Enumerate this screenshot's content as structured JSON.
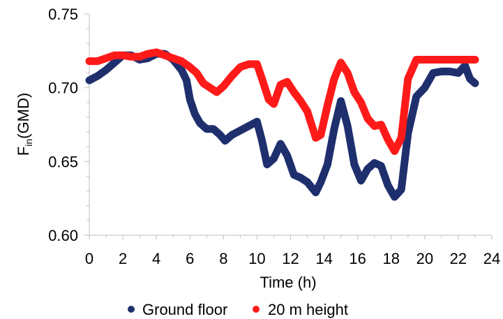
{
  "chart_data": {
    "type": "line",
    "title": "",
    "xlabel": "Time (h)",
    "ylabel_main": "F",
    "ylabel_sub": "in",
    "ylabel_tail": "(GMD)",
    "xlim": [
      0,
      24
    ],
    "ylim": [
      0.6,
      0.75
    ],
    "xticks": [
      0,
      2,
      4,
      6,
      8,
      10,
      12,
      14,
      16,
      18,
      20,
      22,
      24
    ],
    "xtick_labels": [
      "0",
      "2",
      "4",
      "6",
      "8",
      "10",
      "12",
      "14",
      "16",
      "18",
      "20",
      "22",
      "24"
    ],
    "yticks": [
      0.6,
      0.65,
      0.7,
      0.75
    ],
    "ytick_labels": [
      "0.60",
      "0.65",
      "0.70",
      "0.75"
    ],
    "grid": false,
    "legend_position": "bottom",
    "series": [
      {
        "name": "Ground floor",
        "color": "#1f2f6e",
        "points": [
          [
            0,
            0.705
          ],
          [
            0.5,
            0.708
          ],
          [
            1,
            0.712
          ],
          [
            1.5,
            0.717
          ],
          [
            2,
            0.722
          ],
          [
            2.5,
            0.722
          ],
          [
            3,
            0.719
          ],
          [
            3.5,
            0.72
          ],
          [
            4,
            0.723
          ],
          [
            4.5,
            0.723
          ],
          [
            5,
            0.719
          ],
          [
            5.5,
            0.712
          ],
          [
            5.8,
            0.705
          ],
          [
            6,
            0.692
          ],
          [
            6.3,
            0.682
          ],
          [
            6.6,
            0.676
          ],
          [
            7,
            0.672
          ],
          [
            7.4,
            0.672
          ],
          [
            7.8,
            0.668
          ],
          [
            8.1,
            0.664
          ],
          [
            8.5,
            0.668
          ],
          [
            9,
            0.671
          ],
          [
            9.5,
            0.674
          ],
          [
            10,
            0.677
          ],
          [
            10.3,
            0.664
          ],
          [
            10.6,
            0.648
          ],
          [
            11,
            0.652
          ],
          [
            11.4,
            0.662
          ],
          [
            11.8,
            0.654
          ],
          [
            12.2,
            0.641
          ],
          [
            12.6,
            0.639
          ],
          [
            13,
            0.636
          ],
          [
            13.5,
            0.629
          ],
          [
            13.8,
            0.636
          ],
          [
            14.2,
            0.648
          ],
          [
            14.6,
            0.672
          ],
          [
            15,
            0.691
          ],
          [
            15.4,
            0.674
          ],
          [
            15.8,
            0.648
          ],
          [
            16.2,
            0.637
          ],
          [
            16.6,
            0.645
          ],
          [
            17,
            0.649
          ],
          [
            17.4,
            0.647
          ],
          [
            17.8,
            0.634
          ],
          [
            18.2,
            0.626
          ],
          [
            18.6,
            0.631
          ],
          [
            19,
            0.669
          ],
          [
            19.5,
            0.694
          ],
          [
            20,
            0.7
          ],
          [
            20.5,
            0.71
          ],
          [
            21,
            0.711
          ],
          [
            21.5,
            0.711
          ],
          [
            22,
            0.71
          ],
          [
            22.4,
            0.715
          ],
          [
            22.7,
            0.706
          ],
          [
            23,
            0.703
          ]
        ]
      },
      {
        "name": "20 m height",
        "color": "#ff1a1a",
        "points": [
          [
            0,
            0.718
          ],
          [
            0.5,
            0.718
          ],
          [
            1,
            0.72
          ],
          [
            1.5,
            0.722
          ],
          [
            2,
            0.722
          ],
          [
            2.5,
            0.721
          ],
          [
            3,
            0.721
          ],
          [
            3.5,
            0.723
          ],
          [
            4,
            0.724
          ],
          [
            4.5,
            0.722
          ],
          [
            5,
            0.72
          ],
          [
            5.5,
            0.718
          ],
          [
            6,
            0.714
          ],
          [
            6.4,
            0.71
          ],
          [
            6.8,
            0.703
          ],
          [
            7.2,
            0.7
          ],
          [
            7.6,
            0.697
          ],
          [
            8,
            0.701
          ],
          [
            8.5,
            0.708
          ],
          [
            9,
            0.714
          ],
          [
            9.5,
            0.716
          ],
          [
            10,
            0.716
          ],
          [
            10.3,
            0.706
          ],
          [
            10.7,
            0.692
          ],
          [
            11,
            0.689
          ],
          [
            11.4,
            0.702
          ],
          [
            11.8,
            0.704
          ],
          [
            12.2,
            0.697
          ],
          [
            12.6,
            0.691
          ],
          [
            13,
            0.684
          ],
          [
            13.5,
            0.666
          ],
          [
            13.8,
            0.668
          ],
          [
            14.2,
            0.688
          ],
          [
            14.6,
            0.706
          ],
          [
            15,
            0.717
          ],
          [
            15.4,
            0.71
          ],
          [
            15.8,
            0.697
          ],
          [
            16.2,
            0.69
          ],
          [
            16.6,
            0.679
          ],
          [
            17,
            0.674
          ],
          [
            17.4,
            0.675
          ],
          [
            17.8,
            0.665
          ],
          [
            18.2,
            0.657
          ],
          [
            18.6,
            0.666
          ],
          [
            19,
            0.706
          ],
          [
            19.5,
            0.719
          ],
          [
            20,
            0.719
          ],
          [
            21,
            0.719
          ],
          [
            22,
            0.719
          ],
          [
            23,
            0.719
          ]
        ]
      }
    ]
  }
}
